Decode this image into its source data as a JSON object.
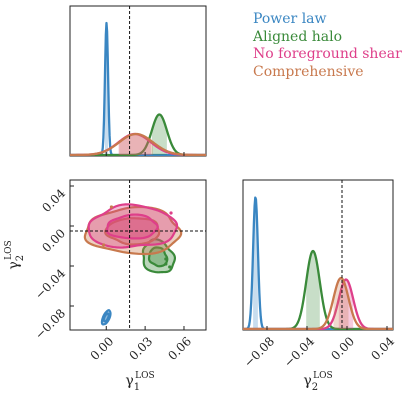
{
  "chart_data": {
    "type": "corner",
    "parameters": {
      "g1": {
        "label": "γ",
        "sub": "1",
        "sup": "LOS",
        "ticks": [
          0.0,
          0.03,
          0.06
        ],
        "tick_labels": [
          "0.00",
          "0.03",
          "0.06"
        ],
        "range": [
          -0.028,
          0.077
        ],
        "truth": 0.018
      },
      "g2": {
        "label": "γ",
        "sub": "2",
        "sup": "LOS",
        "ticks": [
          -0.08,
          -0.04,
          0.0,
          0.04
        ],
        "tick_labels": [
          "−0.08",
          "−0.04",
          "0.00",
          "0.04"
        ],
        "range": [
          -0.104,
          0.046
        ],
        "truth": -0.005
      }
    },
    "series": [
      {
        "name": "Power law",
        "color": "#3a86c2",
        "g1": {
          "mean": 0.0002,
          "sigma": 0.0012,
          "peak_frac": 0.88
        },
        "g2": {
          "mean": -0.0915,
          "sigma": 0.0024,
          "peak_frac": 0.88
        },
        "contour_center": [
          0.0,
          -0.0915
        ],
        "contour_sigma": [
          0.0015,
          0.0032
        ],
        "contour_rho": 0.6
      },
      {
        "name": "Aligned halo",
        "color": "#3a8a3a",
        "g1": {
          "mean": 0.041,
          "sigma": 0.0058,
          "peak_frac": 0.27
        },
        "g2": {
          "mean": -0.034,
          "sigma": 0.0068,
          "peak_frac": 0.52
        },
        "contour_center": [
          0.04,
          -0.031
        ],
        "contour_sigma": [
          0.0055,
          0.0075
        ],
        "contour_rho": -0.15
      },
      {
        "name": "No foreground shear",
        "color": "#de3f8a",
        "g1": {
          "mean": 0.022,
          "sigma": 0.0125,
          "peak_frac": 0.14
        },
        "g2": {
          "mean": -0.001,
          "sigma": 0.0072,
          "peak_frac": 0.33
        },
        "contour_center": [
          0.02,
          -0.001
        ],
        "contour_sigma": [
          0.0155,
          0.0095
        ],
        "contour_rho": 0.05
      },
      {
        "name": "Comprehensive",
        "color": "#c8794e",
        "g1": {
          "mean": 0.023,
          "sigma": 0.013,
          "peak_frac": 0.14
        },
        "g2": {
          "mean": -0.006,
          "sigma": 0.0075,
          "peak_frac": 0.34
        },
        "contour_center": [
          0.021,
          -0.005
        ],
        "contour_sigma": [
          0.0165,
          0.0105
        ],
        "contour_rho": 0.0
      }
    ],
    "legend_position": "top-right"
  }
}
